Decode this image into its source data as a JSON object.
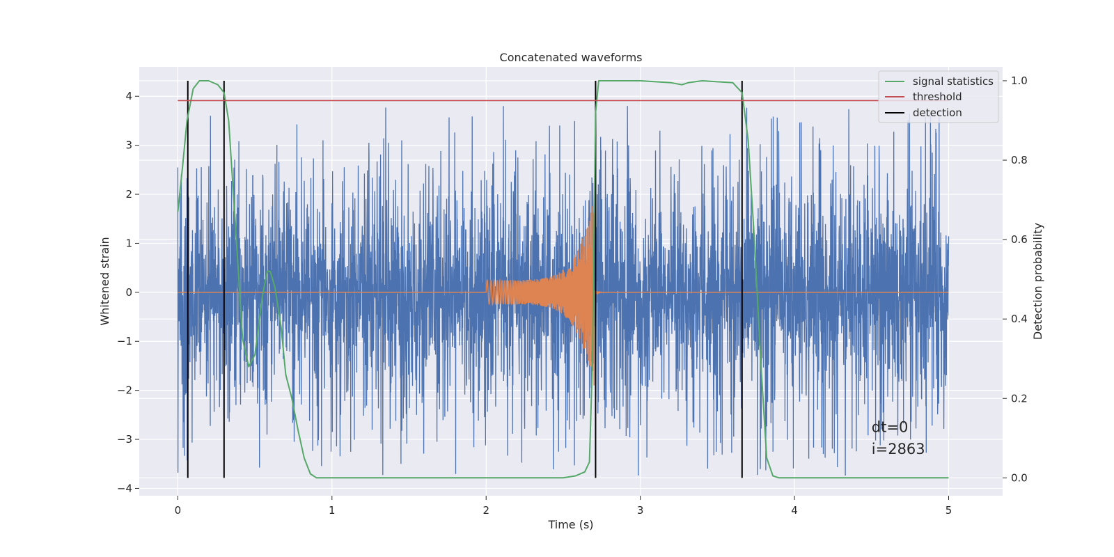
{
  "chart_data": {
    "type": "line",
    "title": "Concatenated waveforms",
    "xlabel": "Time (s)",
    "ylabel": "Whitened strain",
    "y2label": "Detection probability",
    "xlim": [
      -0.25,
      5.35
    ],
    "ylim": [
      -4.15,
      4.6
    ],
    "y2lim": [
      -0.045,
      1.035
    ],
    "xticks": [
      0,
      1,
      2,
      3,
      4,
      5
    ],
    "xtick_labels": [
      "0",
      "1",
      "2",
      "3",
      "4",
      "5"
    ],
    "yticks": [
      -4,
      -3,
      -2,
      -1,
      0,
      1,
      2,
      3,
      4
    ],
    "ytick_labels": [
      "−4",
      "−3",
      "−2",
      "−1",
      "0",
      "1",
      "2",
      "3",
      "4"
    ],
    "y2ticks": [
      0.0,
      0.2,
      0.4,
      0.6,
      0.8,
      1.0
    ],
    "y2tick_labels": [
      "0.0",
      "0.2",
      "0.4",
      "0.6",
      "0.8",
      "1.0"
    ],
    "grid": true,
    "legend_position": "top-right",
    "legend": [
      {
        "label": "signal statistics",
        "color": "#55a868"
      },
      {
        "label": "threshold",
        "color": "#c44e52"
      },
      {
        "label": "detection",
        "color": "#000000"
      }
    ],
    "series": [
      {
        "kind": "noise",
        "axis": "left",
        "color": "#4c72b0",
        "x_range": [
          0,
          5
        ],
        "envelope": {
          "median_abs": 1.0,
          "peak_min": -3.75,
          "peak_max": 3.87
        }
      },
      {
        "kind": "chirp",
        "axis": "left",
        "color": "#dd8452",
        "x_range": [
          2.0,
          2.7
        ],
        "amplitude_start": 0.25,
        "amplitude_peak": 1.9,
        "frequency_start_hz": 35,
        "frequency_end_hz": 250
      },
      {
        "name": "signal statistics",
        "axis": "right",
        "color": "#55a868",
        "x": [
          0,
          0.03,
          0.06,
          0.1,
          0.14,
          0.2,
          0.26,
          0.3,
          0.33,
          0.37,
          0.42,
          0.46,
          0.5,
          0.55,
          0.58,
          0.6,
          0.63,
          0.67,
          0.7,
          0.74,
          0.78,
          0.82,
          0.86,
          0.9,
          1.0,
          1.5,
          2.0,
          2.5,
          2.58,
          2.64,
          2.67,
          2.69,
          2.71,
          2.73,
          2.76,
          3.0,
          3.2,
          3.27,
          3.31,
          3.4,
          3.6,
          3.66,
          3.7,
          3.74,
          3.78,
          3.82,
          3.86,
          3.9,
          4.5,
          5.0
        ],
        "values": [
          0.67,
          0.78,
          0.9,
          0.98,
          1.0,
          1.0,
          0.99,
          0.97,
          0.9,
          0.66,
          0.35,
          0.28,
          0.31,
          0.46,
          0.52,
          0.52,
          0.48,
          0.38,
          0.26,
          0.2,
          0.12,
          0.05,
          0.01,
          0.0,
          0.0,
          0.0,
          0.0,
          0.0,
          0.005,
          0.015,
          0.04,
          0.3,
          0.92,
          1.0,
          1.0,
          1.0,
          0.995,
          0.99,
          0.995,
          1.0,
          0.995,
          0.97,
          0.85,
          0.6,
          0.3,
          0.05,
          0.005,
          0.0,
          0.0,
          0.0
        ]
      },
      {
        "name": "threshold",
        "axis": "right",
        "color": "#c44e52",
        "x": [
          0,
          5
        ],
        "values": [
          0.95,
          0.95
        ]
      },
      {
        "name": "detection",
        "kind": "vlines",
        "axis": "right",
        "color": "#000000",
        "x": [
          0.065,
          0.3,
          2.71,
          3.66
        ],
        "y_range": [
          0.0,
          1.0
        ]
      }
    ],
    "annotations": [
      {
        "text": "dt=0",
        "x": 4.5,
        "y": -2.85
      },
      {
        "text": "i=2863",
        "x": 4.5,
        "y": -3.3
      }
    ]
  }
}
